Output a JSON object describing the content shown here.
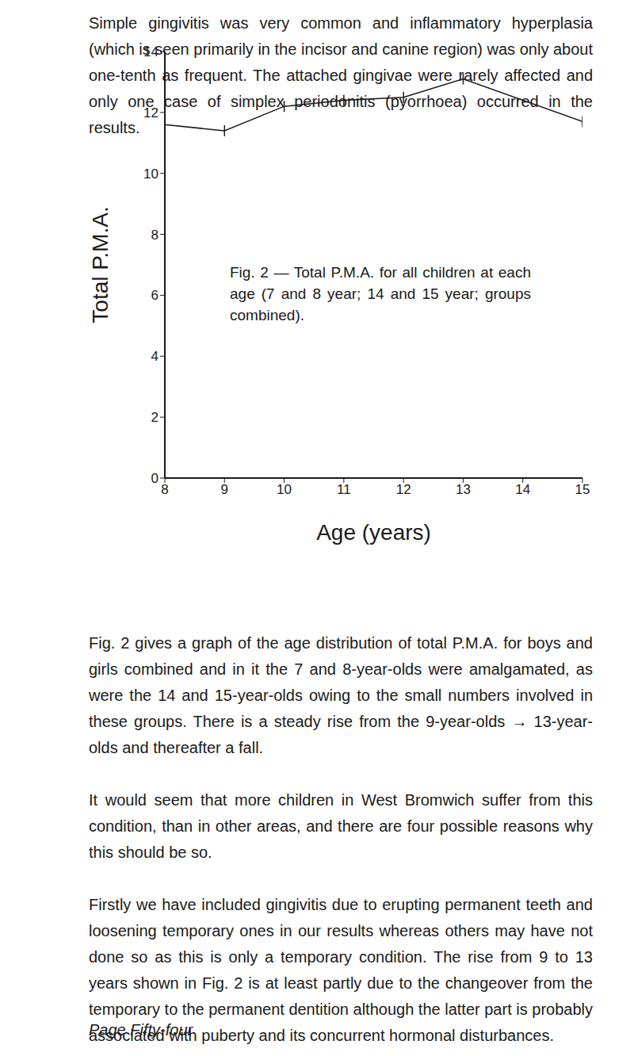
{
  "text_top": "Simple gingivitis was very common and inflammatory hyperplasia (which is seen primarily in the incisor and canine region) was only about one-tenth as frequent. The attached gingivae were rarely affected and only one case of simplex periodonitis (pyorrhoea) occurred in the results.",
  "chart_data": {
    "type": "line",
    "annotation": "Fig. 2 — Total P.M.A. for all children at each age (7 and 8 year; 14 and 15 year; groups combined).",
    "x_label": "Age (years)",
    "y_label": "Total P.M.A.",
    "x": [
      8,
      9,
      10,
      11,
      12,
      13,
      15
    ],
    "values": [
      11.6,
      11.4,
      12.2,
      12.4,
      12.5,
      13.1,
      11.7
    ],
    "color": "#1a1a1a",
    "marker": "vline",
    "xlim": [
      8,
      15
    ],
    "xticks": [
      8,
      9,
      10,
      11,
      12,
      13,
      14,
      15
    ],
    "ylim": [
      0,
      14
    ],
    "yticks": [
      0,
      2,
      4,
      6,
      8,
      10,
      12,
      14
    ],
    "grid": false
  },
  "text_bottom": [
    "Fig. 2 gives a graph of the age distribution of total P.M.A. for boys and girls combined and in it the 7 and 8-year-olds were amalgamated, as were the 14 and 15-year-olds owing to the small numbers involved in these groups. There is a steady rise from the 9-year-olds → 13-year-olds and thereafter a fall.",
    "It would seem that more children in West Bromwich suffer from this condition, than in other areas, and there are four possible reasons why this should be so.",
    "Firstly we have included gingivitis due to erupting permanent teeth and loosening temporary ones in our results whereas others may have not done so as this is only a temporary condition. The rise from 9 to 13 years shown in Fig. 2 is at least partly due to the changeover from the temporary to the permanent dentition although the latter part is probably associated with puberty and its concurrent hormonal disturbances."
  ],
  "footer": "Page Fifty-four"
}
